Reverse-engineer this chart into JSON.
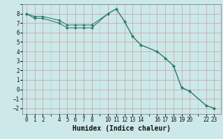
{
  "title": "",
  "xlabel": "Humidex (Indice chaleur)",
  "bg_color": "#cce8e8",
  "line_color": "#2e7d6e",
  "major_grid_color": "#c8a0a0",
  "minor_grid_color": "#a8cccc",
  "xlim": [
    -0.5,
    23.8
  ],
  "ylim": [
    -2.6,
    9.0
  ],
  "xticks": [
    0,
    1,
    2,
    4,
    5,
    6,
    7,
    8,
    10,
    11,
    12,
    13,
    14,
    16,
    17,
    18,
    19,
    20,
    22,
    23
  ],
  "yticks": [
    -2,
    -1,
    0,
    1,
    2,
    3,
    4,
    5,
    6,
    7,
    8
  ],
  "line1_x": [
    0,
    1,
    2,
    4,
    5,
    6,
    7,
    8,
    10,
    11,
    12,
    13,
    14,
    16,
    17,
    18,
    19,
    20,
    22,
    23
  ],
  "line1_y": [
    8.0,
    7.5,
    7.5,
    7.0,
    6.5,
    6.5,
    6.5,
    6.5,
    8.0,
    8.5,
    7.2,
    5.6,
    4.7,
    4.0,
    3.3,
    2.5,
    0.2,
    -0.2,
    -1.7,
    -2.0
  ],
  "line2_x": [
    0,
    1,
    2,
    4,
    5,
    6,
    7,
    8,
    10,
    11,
    12,
    13,
    14,
    16,
    17,
    18,
    19,
    20,
    22,
    23
  ],
  "line2_y": [
    8.0,
    7.7,
    7.7,
    7.3,
    6.8,
    6.8,
    6.8,
    6.8,
    8.0,
    8.5,
    7.2,
    5.6,
    4.7,
    4.0,
    3.3,
    2.5,
    0.2,
    -0.2,
    -1.7,
    -2.0
  ],
  "markersize": 2.0,
  "linewidth": 0.8,
  "fontsize_xlabel": 7,
  "fontsize_ticks": 5.5
}
